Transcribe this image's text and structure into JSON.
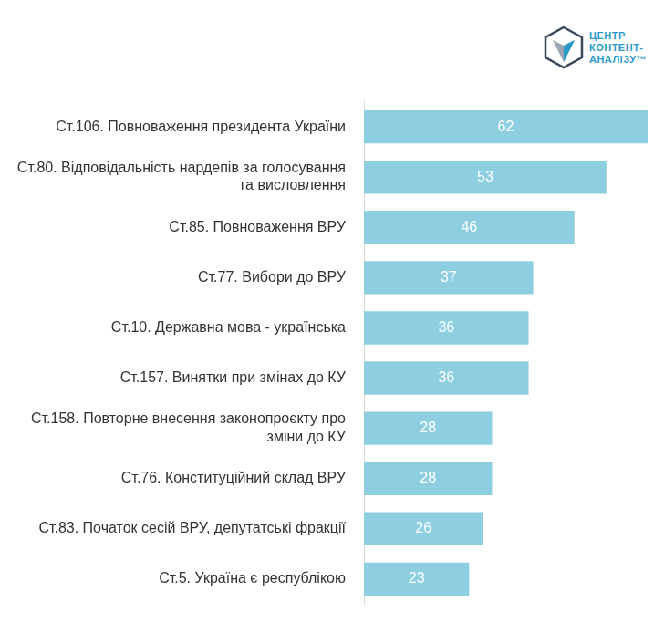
{
  "chart_data": {
    "type": "bar",
    "orientation": "horizontal",
    "categories": [
      "Ст.106. Повноваження президента України",
      "Ст.80. Відповідальність нардепів за голосування та висловлення",
      "Ст.85. Повноваження ВРУ",
      "Ст.77. Вибори до ВРУ",
      "Ст.10. Державна мова - українська",
      "Ст.157. Винятки при змінах до КУ",
      "Ст.158. Повторне внесення законопроєкту про зміни до КУ",
      "Ст.76. Конституційний склад ВРУ",
      "Ст.83. Початок сесій ВРУ, депутатські фракції",
      "Ст.5. Україна є республікою"
    ],
    "values": [
      62,
      53,
      46,
      37,
      36,
      36,
      28,
      28,
      26,
      23
    ],
    "color": "#8dcfe0",
    "xlim": [
      0,
      62
    ],
    "grid": false,
    "data_labels": true,
    "tick_labels": "y",
    "annotations": [
      "ЦЕНТР",
      "КОНТЕНТ-",
      "АНАЛІЗУ™"
    ]
  }
}
